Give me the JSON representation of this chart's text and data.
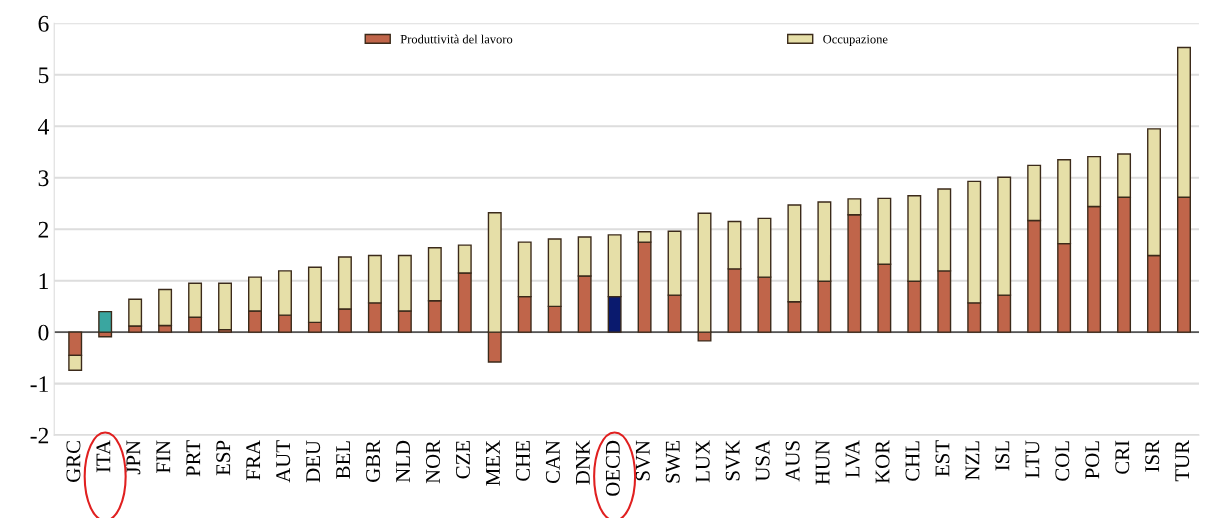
{
  "chart_data": {
    "type": "bar",
    "stacked": true,
    "categories": [
      "GRC",
      "ITA",
      "JPN",
      "FIN",
      "PRT",
      "ESP",
      "FRA",
      "AUT",
      "DEU",
      "BEL",
      "GBR",
      "NLD",
      "NOR",
      "CZE",
      "MEX",
      "CHE",
      "CAN",
      "DNK",
      "OECD",
      "SVN",
      "SWE",
      "LUX",
      "SVK",
      "USA",
      "AUS",
      "HUN",
      "LVA",
      "KOR",
      "CHL",
      "EST",
      "NZL",
      "ISL",
      "LTU",
      "COL",
      "POL",
      "CRI",
      "ISR",
      "TUR"
    ],
    "series": [
      {
        "name": "Produttività del lavoro",
        "color": "#c0654a",
        "colors": [
          "#c0654a",
          "#c0654a",
          "#c0654a",
          "#c0654a",
          "#c0654a",
          "#c0654a",
          "#c0654a",
          "#c0654a",
          "#c0654a",
          "#c0654a",
          "#c0654a",
          "#c0654a",
          "#c0654a",
          "#c0654a",
          "#c0654a",
          "#c0654a",
          "#c0654a",
          "#c0654a",
          "#0a1a6e",
          "#c0654a",
          "#c0654a",
          "#c0654a",
          "#c0654a",
          "#c0654a",
          "#c0654a",
          "#c0654a",
          "#c0654a",
          "#c0654a",
          "#c0654a",
          "#c0654a",
          "#c0654a",
          "#c0654a",
          "#c0654a",
          "#c0654a",
          "#c0654a",
          "#c0654a",
          "#c0654a",
          "#c0654a"
        ],
        "values": [
          -0.45,
          -0.09,
          0.12,
          0.13,
          0.29,
          0.05,
          0.41,
          0.33,
          0.19,
          0.45,
          0.57,
          0.41,
          0.61,
          1.15,
          -0.58,
          0.69,
          0.5,
          1.09,
          0.69,
          1.75,
          0.72,
          -0.17,
          1.23,
          1.07,
          0.59,
          0.99,
          2.28,
          1.32,
          0.99,
          1.19,
          0.57,
          0.72,
          2.17,
          1.72,
          2.44,
          2.62,
          1.49,
          2.62
        ]
      },
      {
        "name": "Occupazione",
        "color": "#e6dfa8",
        "colors": [
          "#e6dfa8",
          "#3aa6a0",
          "#e6dfa8",
          "#e6dfa8",
          "#e6dfa8",
          "#e6dfa8",
          "#e6dfa8",
          "#e6dfa8",
          "#e6dfa8",
          "#e6dfa8",
          "#e6dfa8",
          "#e6dfa8",
          "#e6dfa8",
          "#e6dfa8",
          "#e6dfa8",
          "#e6dfa8",
          "#e6dfa8",
          "#e6dfa8",
          "#e6dfa8",
          "#e6dfa8",
          "#e6dfa8",
          "#e6dfa8",
          "#e6dfa8",
          "#e6dfa8",
          "#e6dfa8",
          "#e6dfa8",
          "#e6dfa8",
          "#e6dfa8",
          "#e6dfa8",
          "#e6dfa8",
          "#e6dfa8",
          "#e6dfa8",
          "#e6dfa8",
          "#e6dfa8",
          "#e6dfa8",
          "#e6dfa8",
          "#e6dfa8",
          "#e6dfa8"
        ],
        "values": [
          -0.29,
          0.4,
          0.52,
          0.7,
          0.66,
          0.9,
          0.66,
          0.86,
          1.07,
          1.01,
          0.92,
          1.08,
          1.03,
          0.54,
          2.32,
          1.06,
          1.31,
          0.76,
          1.2,
          0.2,
          1.24,
          2.31,
          0.92,
          1.14,
          1.88,
          1.54,
          0.31,
          1.28,
          1.66,
          1.59,
          2.36,
          2.29,
          1.07,
          1.63,
          0.97,
          0.84,
          2.46,
          2.91
        ]
      }
    ],
    "ylim": [
      -2,
      6
    ],
    "yticks": [
      -2,
      -1,
      0,
      1,
      2,
      3,
      4,
      5,
      6
    ],
    "grid": "y",
    "legend": "top"
  }
}
